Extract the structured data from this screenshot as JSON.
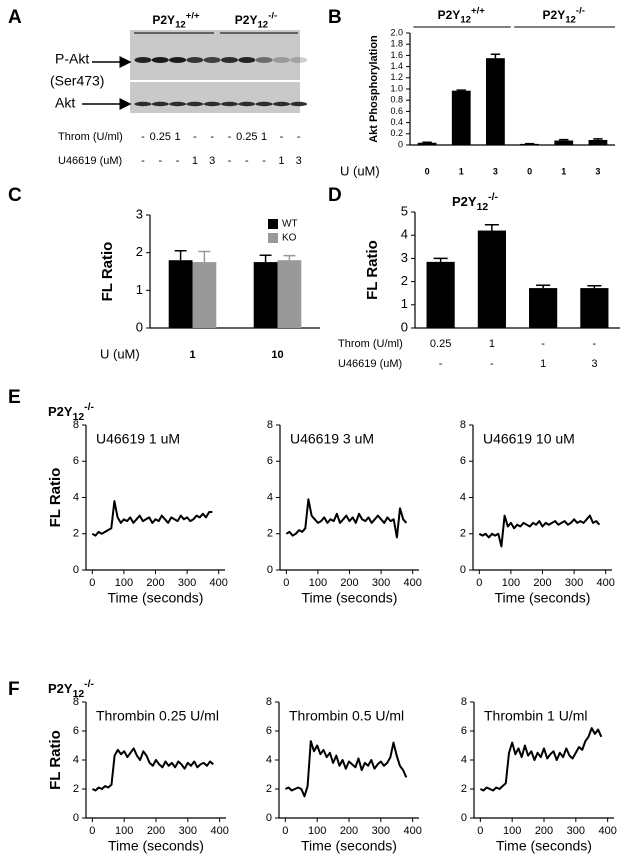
{
  "chart_data": [
    {
      "type": "blot",
      "panel": "A",
      "groups": [
        {
          "text": "P2Y",
          "sub": "12",
          "sup": "+/+"
        },
        {
          "text": "P2Y",
          "sub": "12",
          "sup": "-/-"
        }
      ],
      "bands": [
        "P-Akt",
        "(Ser473)",
        "Akt"
      ],
      "rows": [
        {
          "label": "Throm (U/ml)",
          "cells": [
            "-",
            "0.25",
            "1",
            "-",
            "-",
            "-",
            "0.25",
            "1",
            "-",
            "-"
          ]
        },
        {
          "label": "U46619 (uM)",
          "cells": [
            "-",
            "-",
            "-",
            "1",
            "3",
            "-",
            "-",
            "-",
            "1",
            "3"
          ]
        }
      ]
    },
    {
      "type": "bar",
      "panel": "B",
      "ylabel": "Akt Phosphorylation",
      "xlabel": "U (uM)",
      "groups": [
        {
          "text": "P2Y",
          "sub": "12",
          "sup": "+/+"
        },
        {
          "text": "P2Y",
          "sub": "12",
          "sup": "-/-"
        }
      ],
      "categories": [
        "0",
        "1",
        "3",
        "0",
        "1",
        "3"
      ],
      "series": [
        {
          "color": "#000000",
          "values": [
            0.04,
            0.97,
            1.55,
            0.02,
            0.08,
            0.09
          ],
          "errors": [
            0.01,
            0.01,
            0.07,
            0.005,
            0.015,
            0.02
          ]
        }
      ],
      "ylim": [
        0,
        2
      ],
      "yticks": [
        0,
        0.2,
        0.4,
        0.6,
        0.8,
        {
          "value": 1,
          "label": "1.0"
        },
        1.2,
        1.4,
        1.6,
        1.8,
        {
          "value": 2,
          "label": "2.0"
        }
      ]
    },
    {
      "type": "bar",
      "panel": "C",
      "ylabel": "FL Ratio",
      "xlabel": "U (uM)",
      "legend": "top-right",
      "categories": [
        "1",
        "10"
      ],
      "series": [
        {
          "name": "WT",
          "color": "#000000",
          "values": [
            1.8,
            1.75
          ],
          "errors": [
            0.25,
            0.18
          ]
        },
        {
          "name": "KO",
          "color": "#999999",
          "values": [
            1.75,
            1.8
          ],
          "errors": [
            0.28,
            0.12
          ]
        }
      ],
      "ylim": [
        0,
        3
      ],
      "yticks": [
        0,
        1,
        2,
        3
      ]
    },
    {
      "type": "bar",
      "panel": "D",
      "ylabel": "FL Ratio",
      "title": {
        "text": "P2Y",
        "sub": "12",
        "sup": "-/-"
      },
      "rows": [
        {
          "label": "Throm (U/ml)",
          "cells": [
            "0.25",
            "1",
            "-",
            "-"
          ]
        },
        {
          "label": "U46619 (uM)",
          "cells": [
            "-",
            "-",
            "1",
            "3"
          ]
        }
      ],
      "series": [
        {
          "color": "#000000",
          "values": [
            2.85,
            4.2,
            1.72,
            1.72
          ],
          "errors": [
            0.15,
            0.25,
            0.12,
            0.1
          ]
        }
      ],
      "ylim": [
        0,
        5
      ],
      "yticks": [
        0,
        1,
        2,
        3,
        4,
        5
      ]
    },
    {
      "type": "line",
      "panel": "E",
      "heading": {
        "text": "P2Y",
        "sub": "12",
        "sup": "-/-"
      },
      "ylabel": "FL Ratio",
      "xlabel": "Time (seconds)",
      "title": "U46619 1 uM",
      "x": [
        0,
        10,
        20,
        30,
        40,
        50,
        60,
        70,
        80,
        90,
        100,
        110,
        120,
        130,
        140,
        150,
        160,
        170,
        180,
        190,
        200,
        210,
        220,
        230,
        240,
        250,
        260,
        270,
        280,
        290,
        300,
        310,
        320,
        330,
        340,
        350,
        360,
        370,
        380
      ],
      "series": [
        {
          "color": "#000000",
          "values": [
            2.0,
            1.9,
            2.1,
            2.0,
            2.1,
            2.2,
            2.3,
            3.8,
            2.9,
            2.6,
            2.8,
            2.7,
            2.9,
            2.6,
            2.8,
            3.0,
            2.7,
            2.8,
            2.9,
            2.6,
            2.8,
            2.7,
            3.0,
            2.8,
            2.6,
            2.9,
            2.8,
            2.7,
            3.0,
            2.8,
            2.9,
            2.7,
            2.8,
            3.0,
            2.9,
            3.1,
            2.9,
            3.2,
            3.2
          ]
        }
      ],
      "xlim": [
        -20,
        420
      ],
      "xticks": [
        0,
        100,
        200,
        300,
        400
      ],
      "ylim": [
        0,
        8
      ],
      "yticks": [
        0,
        2,
        4,
        6,
        8
      ]
    },
    {
      "type": "line",
      "xlabel": "Time (seconds)",
      "title": "U46619 3 uM",
      "x": [
        0,
        10,
        20,
        30,
        40,
        50,
        60,
        70,
        80,
        90,
        100,
        110,
        120,
        130,
        140,
        150,
        160,
        170,
        180,
        190,
        200,
        210,
        220,
        230,
        240,
        250,
        260,
        270,
        280,
        290,
        300,
        310,
        320,
        330,
        340,
        350,
        360,
        370,
        380
      ],
      "series": [
        {
          "color": "#000000",
          "values": [
            2.0,
            2.1,
            1.9,
            2.0,
            2.2,
            2.1,
            2.3,
            3.9,
            3.0,
            2.8,
            2.6,
            2.7,
            2.9,
            2.6,
            2.8,
            2.7,
            3.1,
            2.6,
            2.8,
            3.0,
            2.7,
            2.9,
            2.6,
            3.1,
            2.8,
            2.7,
            2.9,
            2.6,
            2.8,
            3.0,
            2.8,
            2.6,
            2.9,
            2.7,
            2.8,
            1.8,
            3.4,
            2.8,
            2.6
          ]
        }
      ],
      "xlim": [
        -20,
        420
      ],
      "xticks": [
        0,
        100,
        200,
        300,
        400
      ],
      "ylim": [
        0,
        8
      ],
      "yticks": [
        0,
        2,
        4,
        6,
        8
      ]
    },
    {
      "type": "line",
      "xlabel": "Time (seconds)",
      "title": "U46619 10 uM",
      "x": [
        0,
        10,
        20,
        30,
        40,
        50,
        60,
        70,
        80,
        90,
        100,
        110,
        120,
        130,
        140,
        150,
        160,
        170,
        180,
        190,
        200,
        210,
        220,
        230,
        240,
        250,
        260,
        270,
        280,
        290,
        300,
        310,
        320,
        330,
        340,
        350,
        360,
        370,
        380
      ],
      "series": [
        {
          "color": "#000000",
          "values": [
            2.0,
            1.9,
            2.0,
            1.8,
            2.0,
            1.9,
            2.0,
            1.3,
            3.0,
            2.4,
            2.6,
            2.3,
            2.5,
            2.4,
            2.6,
            2.5,
            2.4,
            2.6,
            2.5,
            2.7,
            2.4,
            2.6,
            2.5,
            2.6,
            2.7,
            2.5,
            2.6,
            2.7,
            2.5,
            2.6,
            2.8,
            2.6,
            2.7,
            2.6,
            2.8,
            3.0,
            2.6,
            2.7,
            2.5
          ]
        }
      ],
      "xlim": [
        -20,
        420
      ],
      "xticks": [
        0,
        100,
        200,
        300,
        400
      ],
      "ylim": [
        0,
        8
      ],
      "yticks": [
        0,
        2,
        4,
        6,
        8
      ]
    },
    {
      "type": "line",
      "panel": "F",
      "heading": {
        "text": "P2Y",
        "sub": "12",
        "sup": "-/-"
      },
      "ylabel": "FL Ratio",
      "xlabel": "Time (seconds)",
      "title": "Thrombin 0.25 U/ml",
      "x": [
        0,
        10,
        20,
        30,
        40,
        50,
        60,
        70,
        80,
        90,
        100,
        110,
        120,
        130,
        140,
        150,
        160,
        170,
        180,
        190,
        200,
        210,
        220,
        230,
        240,
        250,
        260,
        270,
        280,
        290,
        300,
        310,
        320,
        330,
        340,
        350,
        360,
        370,
        380
      ],
      "series": [
        {
          "color": "#000000",
          "values": [
            2.0,
            1.9,
            2.1,
            2.0,
            2.2,
            2.1,
            2.3,
            4.3,
            4.7,
            4.4,
            4.6,
            4.2,
            4.5,
            4.8,
            4.3,
            4.0,
            4.6,
            4.3,
            3.8,
            3.6,
            4.0,
            3.7,
            3.5,
            3.9,
            3.6,
            3.8,
            3.5,
            3.9,
            3.7,
            3.4,
            3.8,
            3.6,
            3.9,
            3.5,
            3.7,
            3.8,
            3.6,
            3.9,
            3.7
          ]
        }
      ],
      "xlim": [
        -20,
        420
      ],
      "xticks": [
        0,
        100,
        200,
        300,
        400
      ],
      "ylim": [
        0,
        8
      ],
      "yticks": [
        0,
        2,
        4,
        6,
        8
      ]
    },
    {
      "type": "line",
      "xlabel": "Time (seconds)",
      "title": "Thrombin 0.5 U/ml",
      "x": [
        0,
        10,
        20,
        30,
        40,
        50,
        60,
        70,
        80,
        90,
        100,
        110,
        120,
        130,
        140,
        150,
        160,
        170,
        180,
        190,
        200,
        210,
        220,
        230,
        240,
        250,
        260,
        270,
        280,
        290,
        300,
        310,
        320,
        330,
        340,
        350,
        360,
        370,
        380
      ],
      "series": [
        {
          "color": "#000000",
          "values": [
            2.0,
            2.1,
            1.9,
            2.0,
            2.1,
            2.0,
            1.5,
            2.2,
            5.3,
            4.6,
            5.0,
            4.4,
            4.7,
            4.2,
            4.5,
            3.8,
            4.3,
            3.6,
            4.0,
            3.4,
            3.9,
            3.7,
            3.5,
            4.1,
            3.3,
            3.8,
            3.6,
            4.0,
            3.4,
            3.7,
            3.9,
            3.6,
            3.8,
            4.2,
            5.2,
            4.3,
            3.6,
            3.3,
            2.8
          ]
        }
      ],
      "xlim": [
        -20,
        420
      ],
      "xticks": [
        0,
        100,
        200,
        300,
        400
      ],
      "ylim": [
        0,
        8
      ],
      "yticks": [
        0,
        2,
        4,
        6,
        8
      ]
    },
    {
      "type": "line",
      "xlabel": "Time (seconds)",
      "title": "Thrombin 1 U/ml",
      "x": [
        0,
        10,
        20,
        30,
        40,
        50,
        60,
        70,
        80,
        90,
        100,
        110,
        120,
        130,
        140,
        150,
        160,
        170,
        180,
        190,
        200,
        210,
        220,
        230,
        240,
        250,
        260,
        270,
        280,
        290,
        300,
        310,
        320,
        330,
        340,
        350,
        360,
        370,
        380
      ],
      "series": [
        {
          "color": "#000000",
          "values": [
            2.0,
            1.9,
            2.1,
            2.0,
            1.9,
            2.1,
            2.0,
            2.2,
            2.4,
            4.5,
            5.2,
            4.4,
            4.8,
            4.2,
            5.0,
            4.3,
            4.6,
            4.0,
            4.5,
            4.2,
            4.8,
            4.1,
            4.4,
            4.6,
            4.0,
            4.5,
            4.2,
            4.8,
            4.3,
            4.1,
            4.5,
            4.9,
            4.7,
            5.3,
            5.6,
            6.2,
            5.8,
            6.1,
            5.6
          ]
        }
      ],
      "xlim": [
        -20,
        420
      ],
      "xticks": [
        0,
        100,
        200,
        300,
        400
      ],
      "ylim": [
        0,
        8
      ],
      "yticks": [
        0,
        2,
        4,
        6,
        8
      ]
    }
  ]
}
